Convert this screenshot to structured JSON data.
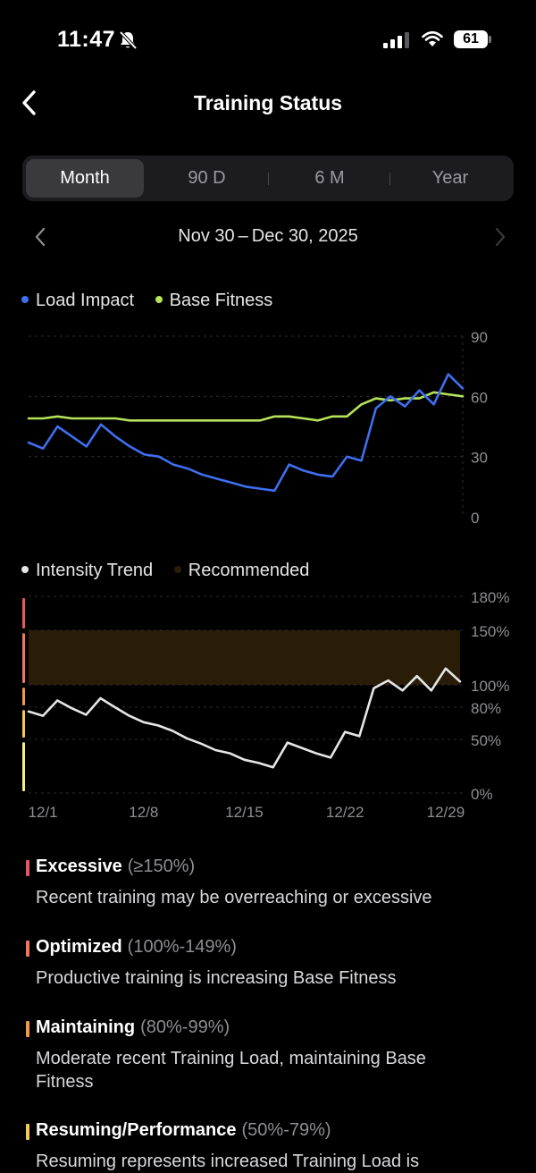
{
  "status_bar": {
    "time": "11:47",
    "battery": "61"
  },
  "header": {
    "title": "Training Status"
  },
  "tabs": [
    {
      "label": "Month",
      "active": true
    },
    {
      "label": "90 D",
      "active": false
    },
    {
      "label": "6 M",
      "active": false
    },
    {
      "label": "Year",
      "active": false
    }
  ],
  "date_range": "Nov 30 – Dec 30, 2025",
  "colors": {
    "load_impact": "#3f6ff0",
    "base_fitness": "#b6e35a",
    "intensity": "#e6e6e6",
    "recommended": "#2a1d08",
    "excessive": "#e8565f",
    "optimized": "#f2775a",
    "maintaining": "#f39a4a",
    "resuming": "#f4c85a"
  },
  "chart_data": [
    {
      "type": "line",
      "legend": [
        "Load Impact",
        "Base Fitness"
      ],
      "y_ticks": [
        "90",
        "60",
        "30",
        "0"
      ],
      "ylim": [
        0,
        90
      ],
      "x": [
        0,
        1,
        2,
        3,
        4,
        5,
        6,
        7,
        8,
        9,
        10,
        11,
        12,
        13,
        14,
        15,
        16,
        17,
        18,
        19,
        20,
        21,
        22,
        23,
        24,
        25,
        26,
        27,
        28,
        29,
        30
      ],
      "series": [
        {
          "name": "Load Impact",
          "values": [
            37,
            34,
            45,
            40,
            35,
            46,
            40,
            35,
            31,
            30,
            26,
            24,
            21,
            19,
            17,
            15,
            14,
            13,
            26,
            23,
            21,
            20,
            30,
            28,
            54,
            60,
            55,
            63,
            56,
            71,
            64
          ]
        },
        {
          "name": "Base Fitness",
          "values": [
            49,
            49,
            50,
            49,
            49,
            49,
            49,
            48,
            48,
            48,
            48,
            48,
            48,
            48,
            48,
            48,
            48,
            50,
            50,
            49,
            48,
            50,
            50,
            56,
            59,
            58,
            59,
            59,
            62,
            61,
            60
          ]
        }
      ]
    },
    {
      "type": "line",
      "legend": [
        "Intensity Trend",
        "Recommended"
      ],
      "y_ticks": [
        "180%",
        "150%",
        "100%",
        "80%",
        "50%",
        "0%"
      ],
      "x_ticks": [
        "12/1",
        "12/8",
        "12/15",
        "12/22",
        "12/29"
      ],
      "recommended_band": [
        100,
        150
      ],
      "series": [
        {
          "name": "Intensity Trend",
          "values": [
            76,
            72,
            86,
            79,
            73,
            88,
            80,
            72,
            66,
            63,
            58,
            51,
            46,
            40,
            37,
            31,
            28,
            24,
            47,
            42,
            37,
            33,
            57,
            53,
            97,
            104,
            95,
            108,
            95,
            115,
            103
          ]
        }
      ]
    }
  ],
  "zones": [
    {
      "name": "Excessive",
      "range": "(≥150%)",
      "desc": "Recent training may be overreaching or excessive"
    },
    {
      "name": "Optimized",
      "range": "(100%-149%)",
      "desc": "Productive training is increasing Base Fitness"
    },
    {
      "name": "Maintaining",
      "range": "(80%-99%)",
      "desc": "Moderate recent Training Load, maintaining Base Fitness"
    },
    {
      "name": "Resuming/Performance",
      "range": "(50%-79%)",
      "desc": "Resuming represents increased Training Load is"
    }
  ]
}
